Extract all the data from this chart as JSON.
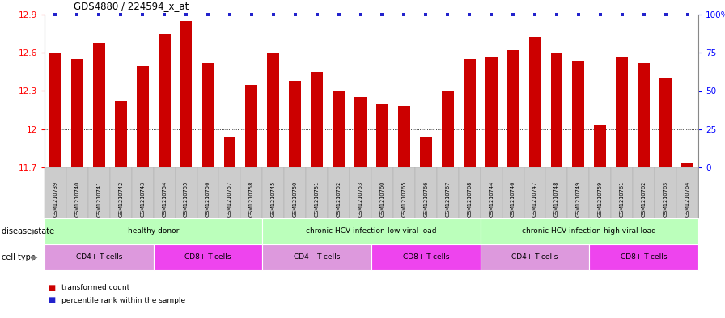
{
  "title": "GDS4880 / 224594_x_at",
  "samples": [
    "GSM1210739",
    "GSM1210740",
    "GSM1210741",
    "GSM1210742",
    "GSM1210743",
    "GSM1210754",
    "GSM1210755",
    "GSM1210756",
    "GSM1210757",
    "GSM1210758",
    "GSM1210745",
    "GSM1210750",
    "GSM1210751",
    "GSM1210752",
    "GSM1210753",
    "GSM1210760",
    "GSM1210765",
    "GSM1210766",
    "GSM1210767",
    "GSM1210768",
    "GSM1210744",
    "GSM1210746",
    "GSM1210747",
    "GSM1210748",
    "GSM1210749",
    "GSM1210759",
    "GSM1210761",
    "GSM1210762",
    "GSM1210763",
    "GSM1210764"
  ],
  "transformed_count": [
    12.6,
    12.55,
    12.68,
    12.22,
    12.5,
    12.75,
    12.85,
    12.52,
    11.94,
    12.35,
    12.6,
    12.38,
    12.45,
    12.3,
    12.25,
    12.2,
    12.18,
    11.94,
    12.3,
    12.55,
    12.57,
    12.62,
    12.72,
    12.6,
    12.54,
    12.03,
    12.57,
    12.52,
    12.4,
    11.74
  ],
  "ylim_low": 11.7,
  "ylim_high": 12.9,
  "yticks": [
    11.7,
    12.0,
    12.3,
    12.6,
    12.9
  ],
  "ytick_labels": [
    "11.7",
    "12",
    "12.3",
    "12.6",
    "12.9"
  ],
  "bar_color": "#cc0000",
  "dot_color": "#2222cc",
  "grid_lines": [
    12.0,
    12.3,
    12.6
  ],
  "disease_groups": [
    {
      "label": "healthy donor",
      "start": 0,
      "end": 9,
      "color": "#bbffbb"
    },
    {
      "label": "chronic HCV infection-low viral load",
      "start": 10,
      "end": 19,
      "color": "#bbffbb"
    },
    {
      "label": "chronic HCV infection-high viral load",
      "start": 20,
      "end": 29,
      "color": "#bbffbb"
    }
  ],
  "cell_type_groups": [
    {
      "label": "CD4+ T-cells",
      "start": 0,
      "end": 4,
      "color": "#dd99dd"
    },
    {
      "label": "CD8+ T-cells",
      "start": 5,
      "end": 9,
      "color": "#ee44ee"
    },
    {
      "label": "CD4+ T-cells",
      "start": 10,
      "end": 14,
      "color": "#dd99dd"
    },
    {
      "label": "CD8+ T-cells",
      "start": 15,
      "end": 19,
      "color": "#ee44ee"
    },
    {
      "label": "CD4+ T-cells",
      "start": 20,
      "end": 24,
      "color": "#dd99dd"
    },
    {
      "label": "CD8+ T-cells",
      "start": 25,
      "end": 29,
      "color": "#ee44ee"
    }
  ],
  "disease_label": "disease state",
  "cell_type_label": "cell type",
  "legend_red_label": "transformed count",
  "legend_blue_label": "percentile rank within the sample",
  "sample_bg_color": "#cccccc",
  "sample_cell_border": "#aaaaaa"
}
